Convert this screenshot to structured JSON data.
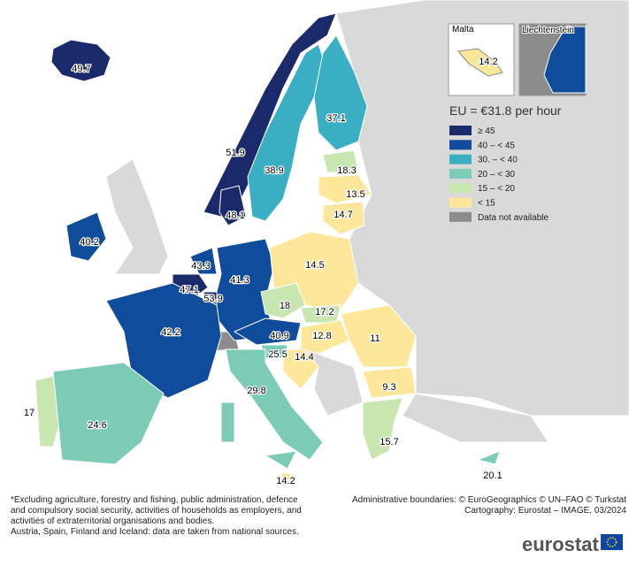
{
  "legend": {
    "title": "EU = €31.8 per hour",
    "items": [
      {
        "label": "≥ 45",
        "color": "#1b2a6b"
      },
      {
        "label": "40 – < 45",
        "color": "#0f4c9c"
      },
      {
        "label": "30. – < 40",
        "color": "#3aaec2"
      },
      {
        "label": "20 – < 30",
        "color": "#7ccbb5"
      },
      {
        "label": "15 – < 20",
        "color": "#c8e6b0"
      },
      {
        "label": "< 15",
        "color": "#fde79b"
      },
      {
        "label": "Data not available",
        "color": "#8c8c8c"
      }
    ]
  },
  "insets": [
    {
      "title": "Malta"
    },
    {
      "title": "Liechtenstein",
      "color": "#0f4c9c"
    }
  ],
  "regions": [
    {
      "value": 49.7,
      "color": "#1b2a6b"
    },
    {
      "value": 51.9,
      "color": "#1b2a6b"
    },
    {
      "value": 38.9,
      "color": "#3aaec2"
    },
    {
      "value": 37.1,
      "color": "#3aaec2"
    },
    {
      "value": 18.3,
      "color": "#c8e6b0"
    },
    {
      "value": 13.5,
      "color": "#fde79b"
    },
    {
      "value": 14.7,
      "color": "#fde79b"
    },
    {
      "value": 48.1,
      "color": "#1b2a6b"
    },
    {
      "value": 40.2,
      "color": "#0f4c9c"
    },
    {
      "value": 43.3,
      "color": "#0f4c9c"
    },
    {
      "value": 47.1,
      "color": "#1b2a6b"
    },
    {
      "value": 53.9,
      "color": "#1b2a6b"
    },
    {
      "value": 41.3,
      "color": "#0f4c9c"
    },
    {
      "value": 14.5,
      "color": "#fde79b"
    },
    {
      "value": 18,
      "color": "#c8e6b0"
    },
    {
      "value": 17.2,
      "color": "#c8e6b0"
    },
    {
      "value": 42.2,
      "color": "#0f4c9c"
    },
    {
      "value": 40.9,
      "color": "#0f4c9c"
    },
    {
      "value": 12.8,
      "color": "#fde79b"
    },
    {
      "value": 11,
      "color": "#fde79b"
    },
    {
      "value": 25.5,
      "color": "#7ccbb5"
    },
    {
      "value": 14.4,
      "color": "#fde79b"
    },
    {
      "value": 9.3,
      "color": "#fde79b"
    },
    {
      "value": 29.8,
      "color": "#7ccbb5"
    },
    {
      "value": 17,
      "color": "#c8e6b0"
    },
    {
      "value": 24.6,
      "color": "#7ccbb5"
    },
    {
      "value": 15.7,
      "color": "#c8e6b0"
    },
    {
      "value": 20.1,
      "color": "#7ccbb5"
    },
    {
      "value": 14.2,
      "color": "#fde79b"
    }
  ],
  "footnote": [
    "*Excluding agriculture, forestry and fishing, public administration, defence",
    "and compulsory social security, activities of households as employers, and",
    "activities of extraterritorial organisations and bodies.",
    "Austria, Spain, Finland and Iceland: data are taken from national sources."
  ],
  "credits": [
    "Administrative boundaries: © EuroGeographics © UN–FAO © Turkstat",
    "Cartography: Eurostat – IMAGE, 03/2024"
  ],
  "logo": "eurostat"
}
